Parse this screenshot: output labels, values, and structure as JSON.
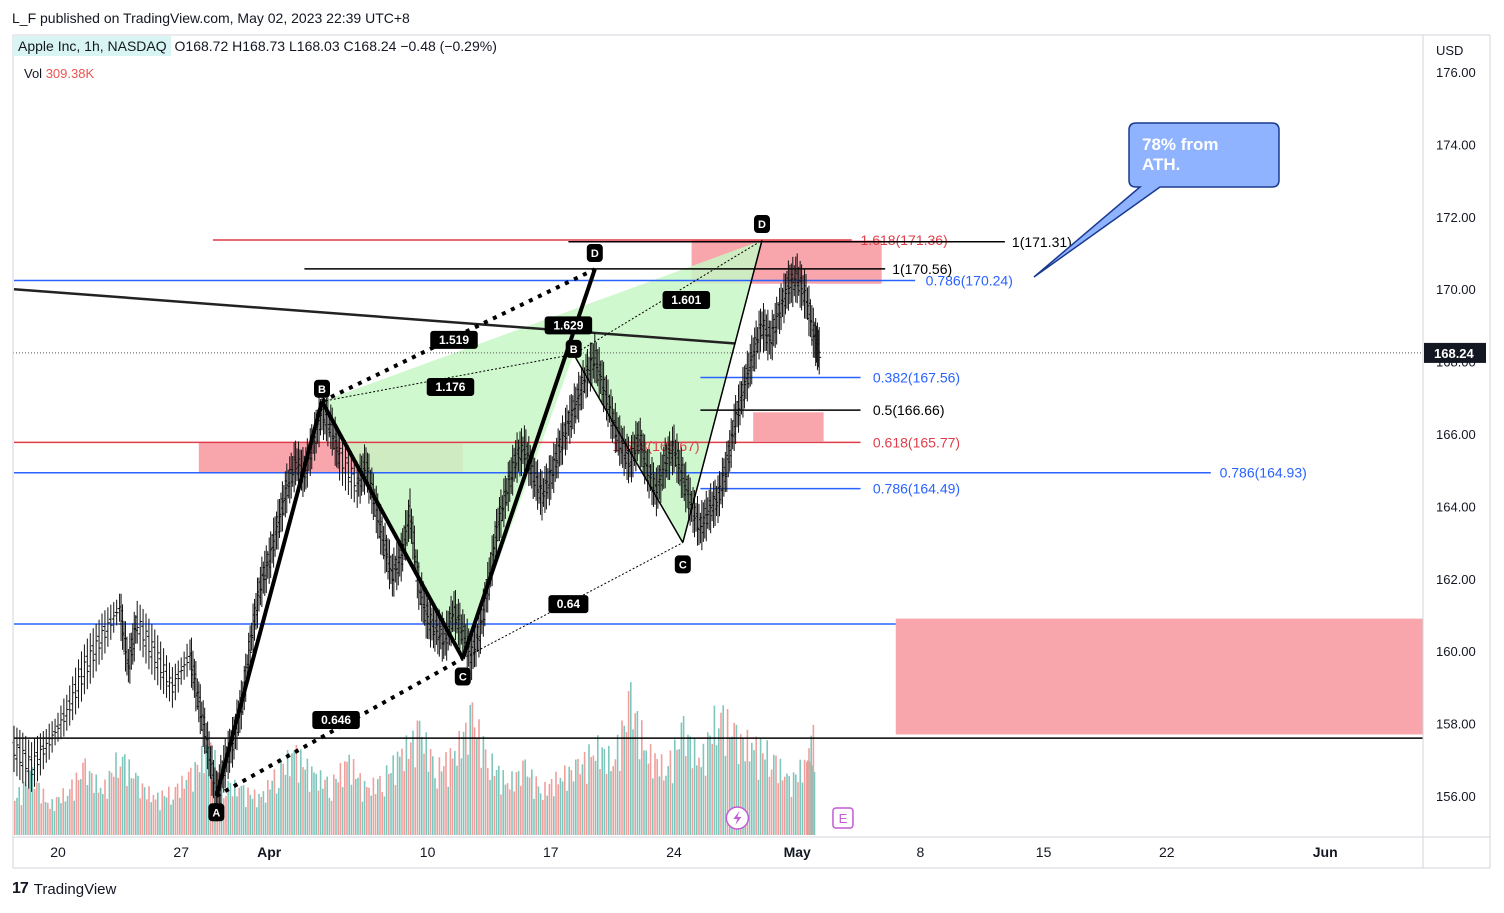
{
  "header": {
    "publisher": "L_F published on TradingView.com, May 02, 2023 22:39 UTC+8"
  },
  "legend": {
    "symbol": "Apple Inc, 1h, NASDAQ",
    "o_label": "O",
    "o": "168.72",
    "h_label": "H",
    "h": "168.73",
    "l_label": "L",
    "l": "168.03",
    "c_label": "C",
    "c": "168.24",
    "change": "−0.48 (−0.29%)",
    "vol_label": "Vol",
    "vol": "309.38K"
  },
  "footer": {
    "brand": "TradingView",
    "logo": "TV-logo-icon"
  },
  "colors": {
    "blue": "#2962ff",
    "red": "#e03d4a",
    "black": "#000000",
    "zone": "#f8a5ac",
    "green_fill": "#c8f7c5",
    "vol_up": "#7fc7bd",
    "vol_down": "#f0a09c",
    "callout": "#8fb3ff"
  },
  "chart_data": {
    "type": "candlestick-with-drawings",
    "currency": "USD",
    "ylim": [
      155,
      177
    ],
    "yticks": [
      "176.00",
      "174.00",
      "172.00",
      "170.00",
      "168.00",
      "166.00",
      "164.00",
      "162.00",
      "160.00",
      "158.00",
      "156.00"
    ],
    "last_price": "168.24",
    "x_ticks": [
      {
        "label": "20",
        "day": 0
      },
      {
        "label": "27",
        "day": 7
      },
      {
        "label": "Apr",
        "day": 12
      },
      {
        "label": "10",
        "day": 21
      },
      {
        "label": "17",
        "day": 28
      },
      {
        "label": "24",
        "day": 35
      },
      {
        "label": "May",
        "day": 42
      },
      {
        "label": "8",
        "day": 49
      },
      {
        "label": "15",
        "day": 56
      },
      {
        "label": "22",
        "day": 63
      },
      {
        "label": "Jun",
        "day": 72
      }
    ],
    "price_path": [
      [
        -2.5,
        157.3
      ],
      [
        -1.5,
        156.8
      ],
      [
        -0.5,
        157.5
      ],
      [
        0.5,
        158.3
      ],
      [
        1.5,
        159.5
      ],
      [
        2.5,
        160.4
      ],
      [
        3.5,
        161.2
      ],
      [
        4.0,
        159.6
      ],
      [
        4.5,
        160.8
      ],
      [
        5.5,
        159.9
      ],
      [
        6.5,
        159.0
      ],
      [
        7.5,
        159.9
      ],
      [
        8.0,
        158.6
      ],
      [
        8.5,
        157.4
      ],
      [
        9.0,
        156.0
      ],
      [
        9.5,
        156.9
      ],
      [
        10.0,
        157.6
      ],
      [
        10.5,
        158.7
      ],
      [
        11.0,
        160.4
      ],
      [
        11.5,
        161.8
      ],
      [
        12.0,
        162.5
      ],
      [
        12.5,
        163.5
      ],
      [
        13.0,
        164.5
      ],
      [
        13.5,
        165.2
      ],
      [
        14.0,
        164.9
      ],
      [
        14.5,
        165.8
      ],
      [
        15.0,
        166.6
      ],
      [
        15.5,
        166.2
      ],
      [
        16.0,
        165.4
      ],
      [
        17.0,
        164.6
      ],
      [
        17.5,
        165.1
      ],
      [
        18.0,
        164.1
      ],
      [
        18.5,
        163.0
      ],
      [
        19.0,
        162.1
      ],
      [
        19.5,
        162.6
      ],
      [
        20.0,
        163.8
      ],
      [
        20.5,
        161.8
      ],
      [
        21.0,
        160.9
      ],
      [
        21.5,
        160.6
      ],
      [
        22.0,
        160.3
      ],
      [
        22.5,
        161.1
      ],
      [
        23.0,
        160.5
      ],
      [
        23.5,
        159.9
      ],
      [
        24.0,
        160.6
      ],
      [
        24.5,
        162.0
      ],
      [
        25.0,
        163.5
      ],
      [
        25.5,
        164.4
      ],
      [
        26.0,
        165.3
      ],
      [
        26.5,
        165.6
      ],
      [
        27.0,
        164.9
      ],
      [
        27.5,
        164.3
      ],
      [
        28.0,
        164.8
      ],
      [
        28.5,
        165.6
      ],
      [
        29.0,
        166.3
      ],
      [
        29.5,
        166.9
      ],
      [
        30.0,
        167.6
      ],
      [
        30.5,
        168.1
      ],
      [
        31.0,
        167.3
      ],
      [
        31.5,
        166.4
      ],
      [
        32.0,
        165.7
      ],
      [
        32.5,
        165.2
      ],
      [
        33.0,
        165.9
      ],
      [
        33.5,
        165.0
      ],
      [
        34.0,
        164.4
      ],
      [
        34.5,
        165.2
      ],
      [
        35.0,
        165.6
      ],
      [
        35.5,
        164.8
      ],
      [
        36.0,
        164.0
      ],
      [
        36.5,
        163.4
      ],
      [
        37.0,
        163.9
      ],
      [
        37.5,
        164.2
      ],
      [
        38.0,
        165.1
      ],
      [
        38.5,
        166.4
      ],
      [
        39.0,
        167.3
      ],
      [
        39.5,
        168.2
      ],
      [
        40.0,
        169.0
      ],
      [
        40.5,
        168.6
      ],
      [
        41.0,
        169.4
      ],
      [
        41.5,
        170.1
      ],
      [
        42.0,
        170.3
      ],
      [
        42.5,
        169.8
      ],
      [
        43.0,
        168.6
      ],
      [
        43.3,
        168.24
      ]
    ],
    "volume_path": [
      [
        -2.5,
        0.25
      ],
      [
        -1.5,
        0.4
      ],
      [
        -0.5,
        0.2
      ],
      [
        0.5,
        0.3
      ],
      [
        1.5,
        0.45
      ],
      [
        2.5,
        0.3
      ],
      [
        3.5,
        0.55
      ],
      [
        4.5,
        0.35
      ],
      [
        5.5,
        0.25
      ],
      [
        6.5,
        0.3
      ],
      [
        7.5,
        0.4
      ],
      [
        8.5,
        0.6
      ],
      [
        9.5,
        0.35
      ],
      [
        10.5,
        0.3
      ],
      [
        11.5,
        0.25
      ],
      [
        12.5,
        0.45
      ],
      [
        13.5,
        0.55
      ],
      [
        14.5,
        0.4
      ],
      [
        15.5,
        0.35
      ],
      [
        16.5,
        0.5
      ],
      [
        17.5,
        0.3
      ],
      [
        18.5,
        0.4
      ],
      [
        19.5,
        0.55
      ],
      [
        20.5,
        0.7
      ],
      [
        21.5,
        0.45
      ],
      [
        22.5,
        0.55
      ],
      [
        23.5,
        0.8
      ],
      [
        24.5,
        0.5
      ],
      [
        25.5,
        0.35
      ],
      [
        26.5,
        0.45
      ],
      [
        27.5,
        0.3
      ],
      [
        28.5,
        0.4
      ],
      [
        29.5,
        0.45
      ],
      [
        30.5,
        0.6
      ],
      [
        31.5,
        0.5
      ],
      [
        32.5,
        0.9
      ],
      [
        33.5,
        0.55
      ],
      [
        34.5,
        0.45
      ],
      [
        35.5,
        0.7
      ],
      [
        36.5,
        0.5
      ],
      [
        37.5,
        0.85
      ],
      [
        38.5,
        0.65
      ],
      [
        39.5,
        0.6
      ],
      [
        40.5,
        0.55
      ],
      [
        41.5,
        0.35
      ],
      [
        42.5,
        0.5
      ],
      [
        43.0,
        0.7
      ]
    ],
    "horizontal_levels": [
      {
        "label": "0.786(170.24)",
        "price": 170.24,
        "color": "blue",
        "from": -2.5,
        "to": 48.7,
        "text_day": 49.3
      },
      {
        "label": "0.786(164.93)",
        "price": 164.93,
        "color": "blue",
        "from": -2.5,
        "to": 65.5,
        "text_day": 66.0
      },
      {
        "label": "0.382(167.56)",
        "price": 167.56,
        "color": "blue",
        "from": 36.5,
        "to": 45.6,
        "text_day": 46.3
      },
      {
        "label": "0.5(166.66)",
        "price": 166.66,
        "color": "black",
        "from": 36.5,
        "to": 45.6,
        "text_day": 46.3
      },
      {
        "label": "0.618(165.77)",
        "price": 165.77,
        "color": "red",
        "from": -2.5,
        "to": 45.6,
        "text_day": 46.3
      },
      {
        "label": "0.786(164.49)",
        "price": 164.49,
        "color": "blue",
        "from": 36.5,
        "to": 45.6,
        "text_day": 46.3
      },
      {
        "label": "1.618(171.36)",
        "price": 171.36,
        "color": "red",
        "from": 8.8,
        "to": 45.1,
        "text_day": 45.6
      },
      {
        "label": "1(171.31)",
        "price": 171.31,
        "color": "black",
        "from": 29.0,
        "to": 53.8,
        "text_day": 54.2
      },
      {
        "label": "1(170.56)",
        "price": 170.56,
        "color": "black",
        "from": 14.0,
        "to": 47.0,
        "text_day": 47.4
      },
      {
        "label": "",
        "price": 160.75,
        "color": "blue",
        "from": -2.5,
        "to": 47.6,
        "text_day": 0
      },
      {
        "label": "",
        "price": 157.6,
        "color": "black",
        "from": -2.5,
        "to": 82,
        "text_day": 0
      }
    ],
    "fib_inline_label": {
      "label": "1.618(165.67)",
      "price": 165.67,
      "day": 31.5
    },
    "zones": [
      {
        "from": 8.0,
        "to": 23.0,
        "top": 165.75,
        "bottom": 164.95
      },
      {
        "from": 36.0,
        "to": 46.8,
        "top": 171.35,
        "bottom": 170.15
      },
      {
        "from": 39.5,
        "to": 43.5,
        "top": 166.6,
        "bottom": 165.8
      },
      {
        "from": 47.6,
        "to": 82,
        "top": 160.9,
        "bottom": 157.7
      }
    ],
    "trendline": {
      "from": [
        -2.5,
        170.0
      ],
      "to": [
        38.5,
        168.5
      ]
    },
    "pattern_points": {
      "A": [
        9.0,
        156.0
      ],
      "B1": [
        15.0,
        166.9
      ],
      "C1": [
        23.0,
        159.8
      ],
      "D1": [
        30.5,
        170.55
      ],
      "B2": [
        29.3,
        168.2
      ],
      "C2": [
        35.5,
        163.0
      ],
      "D2": [
        40.0,
        171.35
      ]
    },
    "point_labels": [
      {
        "label": "A",
        "day": 9.0,
        "price": 155.55
      },
      {
        "label": "B",
        "day": 15.0,
        "price": 167.25
      },
      {
        "label": "C",
        "day": 23.0,
        "price": 159.3
      },
      {
        "label": "D",
        "day": 30.5,
        "price": 171.0
      },
      {
        "label": "B",
        "day": 29.3,
        "price": 168.35
      },
      {
        "label": "C",
        "day": 35.5,
        "price": 162.4
      },
      {
        "label": "D",
        "day": 40.0,
        "price": 171.8
      }
    ],
    "ratios": [
      {
        "label": "1.519",
        "day": 22.5,
        "price": 168.6
      },
      {
        "label": "1.176",
        "day": 22.3,
        "price": 167.3
      },
      {
        "label": "1.629",
        "day": 29.0,
        "price": 169.0
      },
      {
        "label": "1.601",
        "day": 35.7,
        "price": 169.7
      },
      {
        "label": "0.64",
        "day": 29.0,
        "price": 161.3
      },
      {
        "label": "0.646",
        "day": 15.8,
        "price": 158.1
      }
    ],
    "callout": {
      "text_line1": "78% from",
      "text_line2": "ATH."
    },
    "event_icons": [
      {
        "name": "dividend-lightning-icon",
        "day": 38.6
      },
      {
        "name": "earnings-icon",
        "label": "E",
        "day": 44.6
      }
    ]
  }
}
